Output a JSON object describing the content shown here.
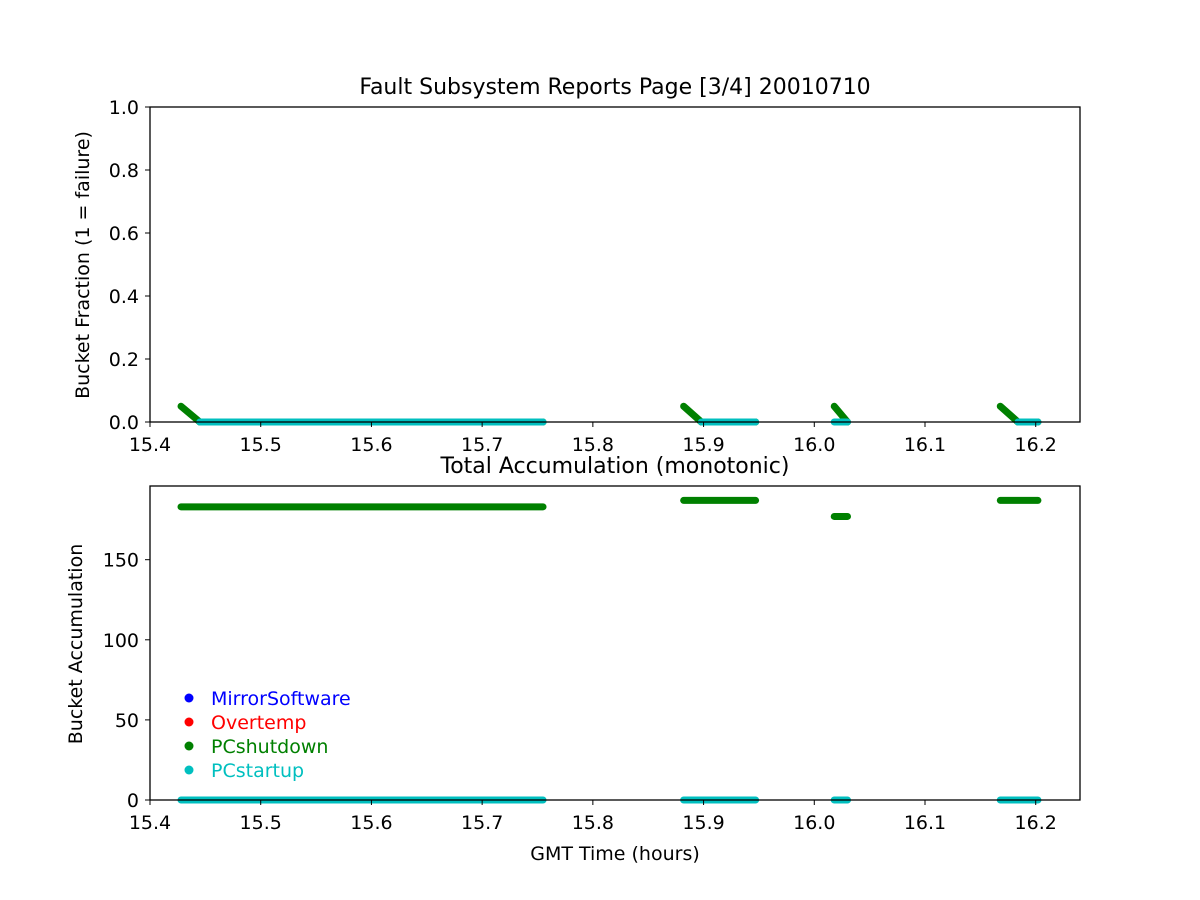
{
  "chart_data": [
    {
      "type": "scatter",
      "title": "Fault Subsystem Reports Page [3/4] 20010710",
      "xlabel": "",
      "ylabel": "Bucket Fraction (1 = failure)",
      "xlim": [
        15.4,
        16.24
      ],
      "ylim": [
        0.0,
        1.0
      ],
      "xticks": [
        "15.4",
        "15.5",
        "15.6",
        "15.7",
        "15.8",
        "15.9",
        "16.0",
        "16.1",
        "16.2"
      ],
      "yticks": [
        "0.0",
        "0.2",
        "0.4",
        "0.6",
        "0.8",
        "1.0"
      ],
      "grid": false,
      "series": [
        {
          "name": "PCshutdown",
          "color": "#008000",
          "segments": [
            {
              "x_start": 15.428,
              "x_end": 15.445,
              "y_start": 0.05,
              "y_end": 0.0
            },
            {
              "x_start": 15.445,
              "x_end": 15.755,
              "y_start": 0.0,
              "y_end": 0.0
            },
            {
              "x_start": 15.882,
              "x_end": 15.898,
              "y_start": 0.05,
              "y_end": 0.0
            },
            {
              "x_start": 15.898,
              "x_end": 15.947,
              "y_start": 0.0,
              "y_end": 0.0
            },
            {
              "x_start": 16.018,
              "x_end": 16.03,
              "y_start": 0.05,
              "y_end": 0.0
            },
            {
              "x_start": 16.168,
              "x_end": 16.184,
              "y_start": 0.05,
              "y_end": 0.0
            },
            {
              "x_start": 16.184,
              "x_end": 16.202,
              "y_start": 0.0,
              "y_end": 0.0
            }
          ]
        },
        {
          "name": "PCstartup",
          "color": "#00bfbf",
          "segments": [
            {
              "x_start": 15.445,
              "x_end": 15.755,
              "y_start": 0.0,
              "y_end": 0.0
            },
            {
              "x_start": 15.898,
              "x_end": 15.947,
              "y_start": 0.0,
              "y_end": 0.0
            },
            {
              "x_start": 16.018,
              "x_end": 16.03,
              "y_start": 0.0,
              "y_end": 0.0
            },
            {
              "x_start": 16.184,
              "x_end": 16.202,
              "y_start": 0.0,
              "y_end": 0.0
            }
          ]
        }
      ]
    },
    {
      "type": "scatter",
      "title": "Total Accumulation (monotonic)",
      "xlabel": "GMT Time (hours)",
      "ylabel": "Bucket Accumulation",
      "xlim": [
        15.4,
        16.24
      ],
      "ylim": [
        0,
        196
      ],
      "xticks": [
        "15.4",
        "15.5",
        "15.6",
        "15.7",
        "15.8",
        "15.9",
        "16.0",
        "16.1",
        "16.2"
      ],
      "yticks": [
        "0",
        "50",
        "100",
        "150"
      ],
      "grid": false,
      "legend_position": "lower-left",
      "legend": [
        {
          "label": "MirrorSoftware",
          "color": "#0000ff"
        },
        {
          "label": "Overtemp",
          "color": "#ff0000"
        },
        {
          "label": "PCshutdown",
          "color": "#008000"
        },
        {
          "label": "PCstartup",
          "color": "#00bfbf"
        }
      ],
      "series": [
        {
          "name": "PCshutdown",
          "color": "#008000",
          "segments": [
            {
              "x_start": 15.428,
              "x_end": 15.755,
              "y_start": 183,
              "y_end": 183
            },
            {
              "x_start": 15.882,
              "x_end": 15.947,
              "y_start": 187,
              "y_end": 187
            },
            {
              "x_start": 16.018,
              "x_end": 16.03,
              "y_start": 177,
              "y_end": 177
            },
            {
              "x_start": 16.168,
              "x_end": 16.202,
              "y_start": 187,
              "y_end": 187
            }
          ]
        },
        {
          "name": "PCstartup",
          "color": "#00bfbf",
          "segments": [
            {
              "x_start": 15.428,
              "x_end": 15.755,
              "y_start": 0,
              "y_end": 0
            },
            {
              "x_start": 15.882,
              "x_end": 15.947,
              "y_start": 0,
              "y_end": 0
            },
            {
              "x_start": 16.018,
              "x_end": 16.03,
              "y_start": 0,
              "y_end": 0
            },
            {
              "x_start": 16.168,
              "x_end": 16.202,
              "y_start": 0,
              "y_end": 0
            }
          ]
        }
      ]
    }
  ]
}
